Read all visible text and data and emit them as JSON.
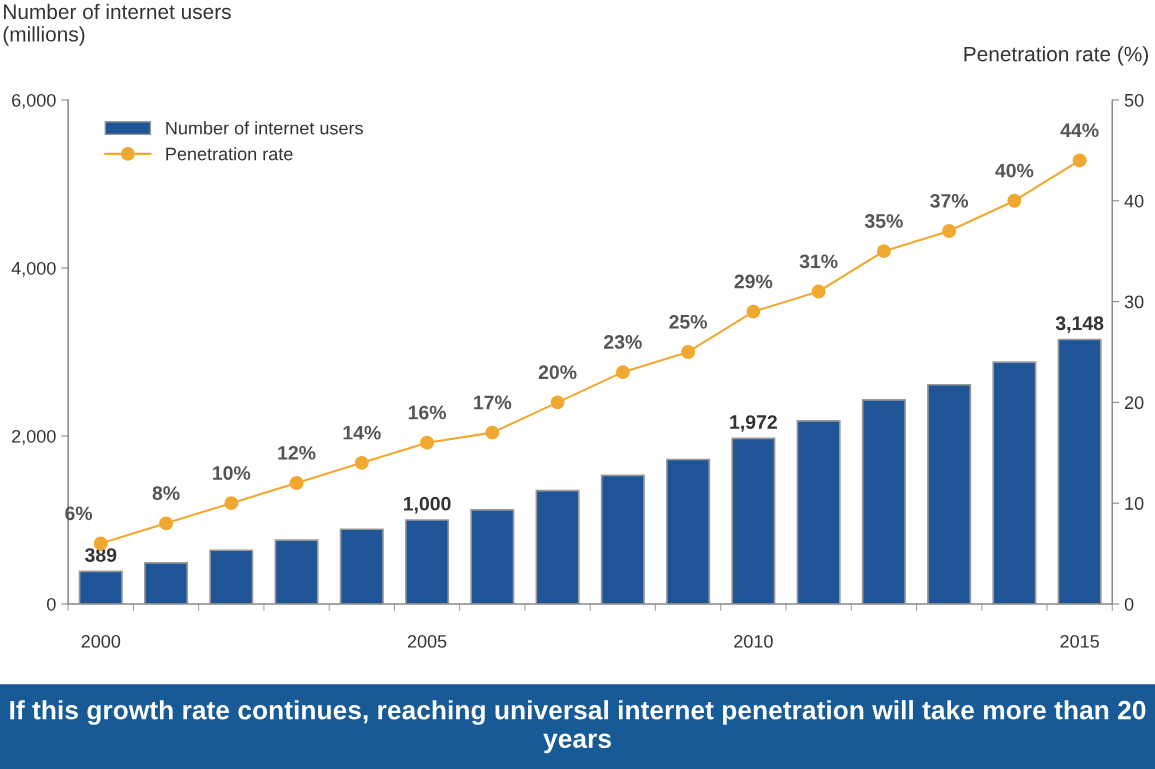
{
  "chart_data": {
    "type": "bar",
    "ylabel": "Number of internet users\n(millions)",
    "y2label": "Penetration rate (%)",
    "categories": [
      "2000",
      null,
      null,
      null,
      null,
      "2005",
      null,
      null,
      null,
      null,
      "2010",
      null,
      null,
      null,
      null,
      "2015"
    ],
    "series": [
      {
        "name": "Number of internet users",
        "color": "#1f5597",
        "values": [
          389,
          490,
          640,
          760,
          890,
          1000,
          1120,
          1350,
          1530,
          1720,
          1972,
          2180,
          2430,
          2610,
          2880,
          3148
        ],
        "value_labels": [
          "389",
          null,
          null,
          null,
          null,
          "1,000",
          null,
          null,
          null,
          null,
          "1,972",
          null,
          null,
          null,
          null,
          "3,148"
        ]
      },
      {
        "name": "Penetration rate",
        "type": "line",
        "axis": "y2",
        "color": "#f0a830",
        "marker": "circle",
        "values": [
          6,
          8,
          10,
          12,
          14,
          16,
          17,
          20,
          23,
          25,
          29,
          31,
          35,
          37,
          40,
          44
        ],
        "value_labels": [
          "6%",
          "8%",
          "10%",
          "12%",
          "14%",
          "16%",
          "17%",
          "20%",
          "23%",
          "25%",
          "29%",
          "31%",
          "35%",
          "37%",
          "40%",
          "44%"
        ]
      }
    ],
    "ylim": [
      0,
      6000
    ],
    "yticks": [
      0,
      {
        "value": 2000,
        "label": "2,000"
      },
      {
        "value": 4000,
        "label": "4,000"
      },
      {
        "value": 6000,
        "label": "6,000"
      }
    ],
    "y2lim": [
      0,
      50
    ],
    "y2ticks": [
      0,
      10,
      20,
      30,
      40,
      50
    ],
    "legend": "top left",
    "grid": false,
    "annotations": [
      "If this growth rate continues, reaching universal internet penetration will take more than 20 years"
    ]
  }
}
